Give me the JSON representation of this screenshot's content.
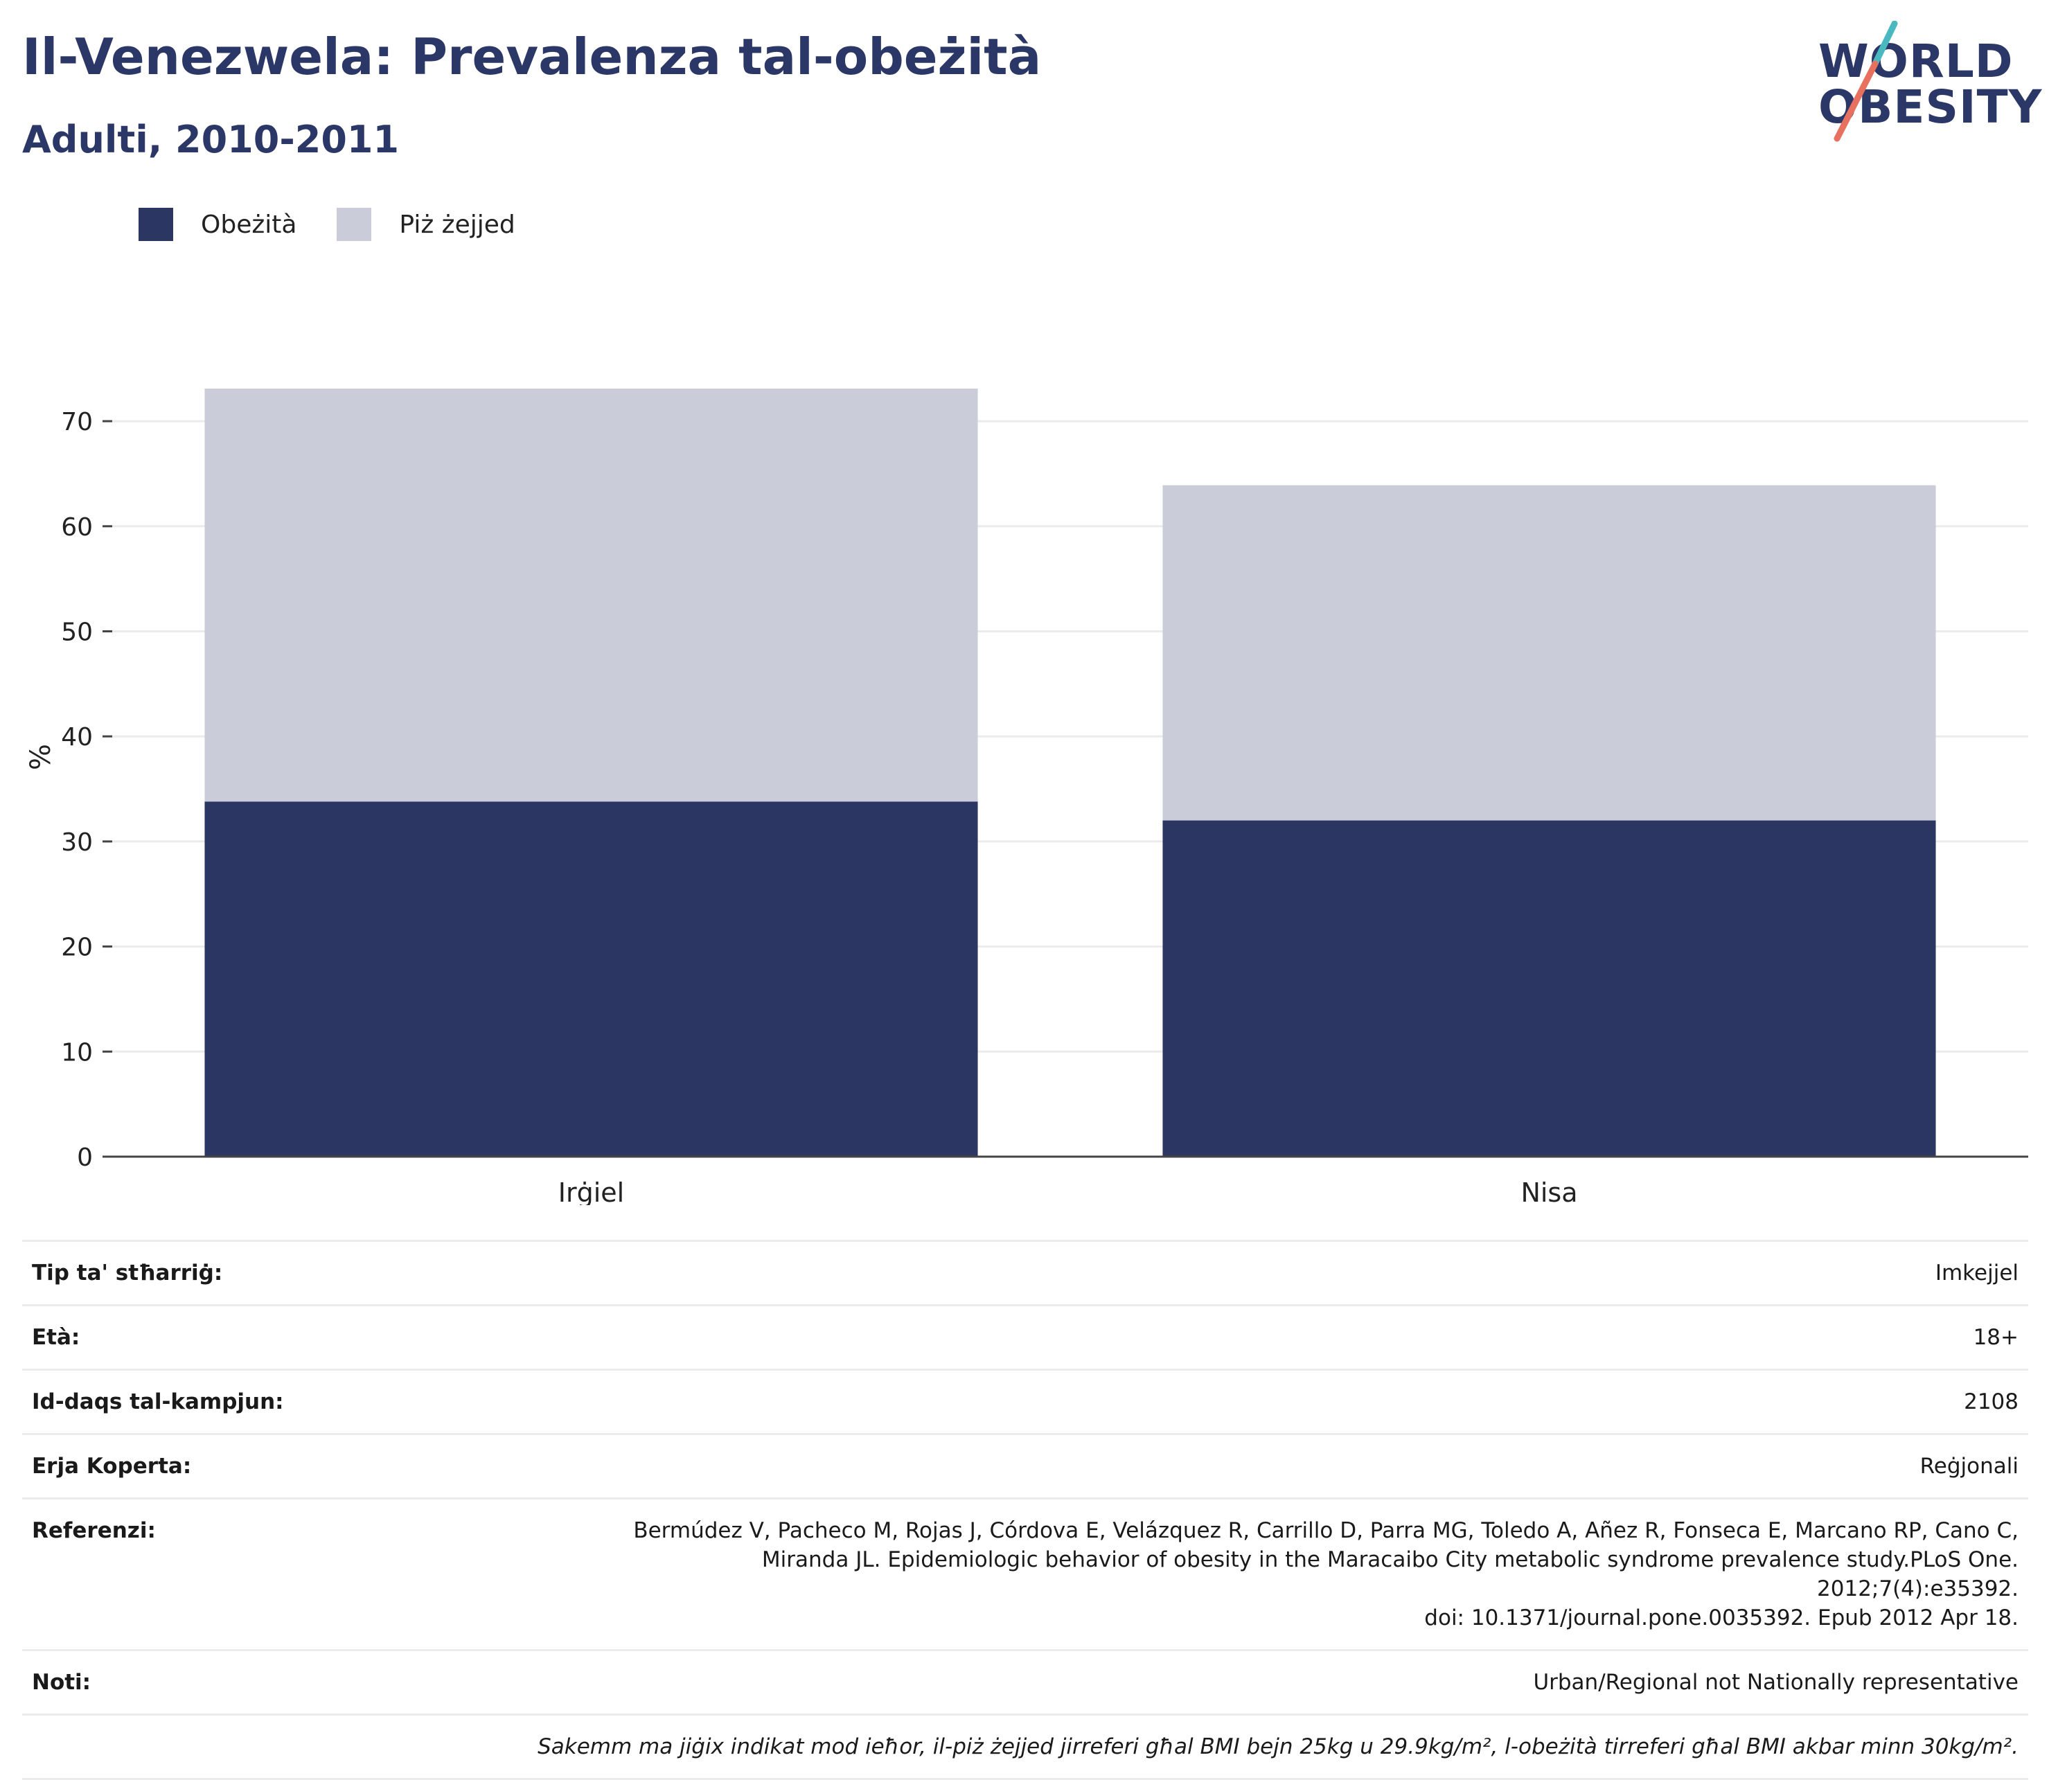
{
  "header": {
    "title": "Il-Venezwela: Prevalenza tal-obeżità",
    "subtitle": "Adulti, 2010-2011"
  },
  "logo": {
    "line1": "WORLD",
    "line2": "OBESITY",
    "slash_colors": [
      "#4ab8c1",
      "#e8705f"
    ]
  },
  "legend": [
    {
      "label": "Obeżità",
      "color": "#2b3663"
    },
    {
      "label": "Piż żejjed",
      "color": "#cacdd9"
    }
  ],
  "chart_data": {
    "type": "bar",
    "stacked": true,
    "categories": [
      "Irġiel",
      "Nisa"
    ],
    "series": [
      {
        "name": "Obeżità",
        "values": [
          33.8,
          32.0
        ],
        "color": "#2b3663"
      },
      {
        "name": "Piż żejjed",
        "values": [
          39.3,
          31.9
        ],
        "color": "#cacdd9"
      }
    ],
    "ylabel": "%",
    "ylim": [
      0,
      75
    ],
    "yticks": [
      0,
      10,
      20,
      30,
      40,
      50,
      60,
      70
    ],
    "grid": true,
    "legend_position": "top-left"
  },
  "info": {
    "rows": [
      {
        "label": "Tip ta' stħarriġ:",
        "value": "Imkejjel"
      },
      {
        "label": "Età:",
        "value": "18+"
      },
      {
        "label": "Id-daqs tal-kampjun:",
        "value": "2108"
      },
      {
        "label": "Erja Koperta:",
        "value": "Reġjonali"
      },
      {
        "label": "Referenzi:",
        "value_lines": [
          "Bermúdez V, Pacheco M, Rojas J, Córdova E, Velázquez R, Carrillo D, Parra MG, Toledo A, Añez R, Fonseca E, Marcano RP, Cano C,",
          "Miranda JL. Epidemiologic behavior of obesity in the Maracaibo City metabolic syndrome prevalence study.PLoS One. 2012;7(4):e35392.",
          "doi: 10.1371/journal.pone.0035392. Epub 2012 Apr 18."
        ]
      },
      {
        "label": "Noti:",
        "value": "Urban/Regional not Nationally representative"
      }
    ],
    "footnote": "Sakemm ma jiġix indikat mod ieħor, il-piż żejjed jirreferi għal BMI bejn 25kg u 29.9kg/m², l-obeżità tirreferi għal BMI akbar minn 30kg/m²."
  }
}
